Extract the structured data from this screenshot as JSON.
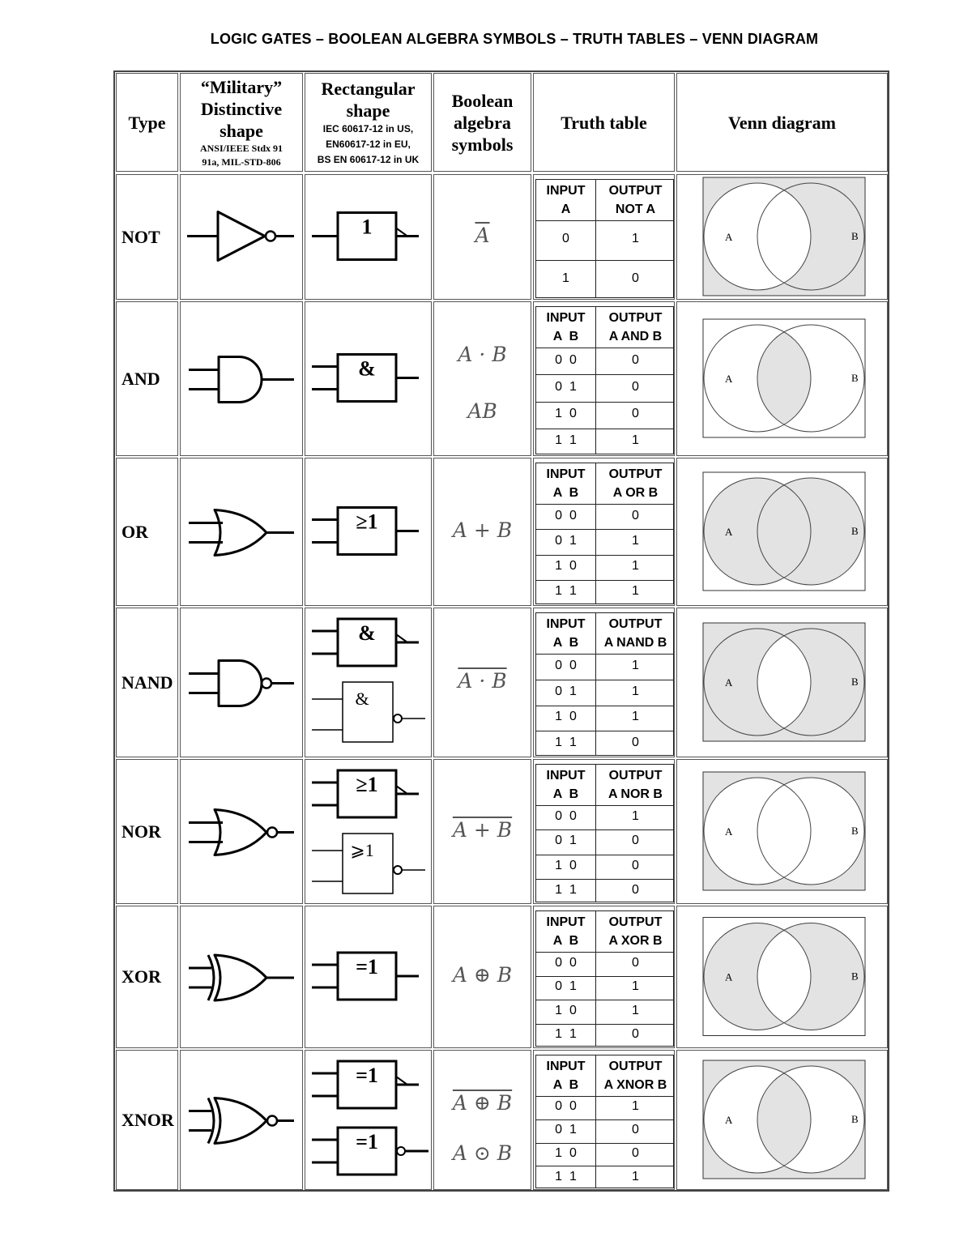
{
  "title": "LOGIC GATES – BOOLEAN ALGEBRA SYMBOLS – TRUTH TABLES – VENN DIAGRAM",
  "headers": {
    "type": "Type",
    "military_1": "“Military”",
    "military_2": "Distinctive",
    "military_3": "shape",
    "military_4": "ANSI/IEEE Stdx 91",
    "military_5": "91a, MIL-STD-806",
    "rect_1": "Rectangular",
    "rect_2": "shape",
    "rect_3": "IEC 60617-12 in US,",
    "rect_4": "EN60617-12 in EU,",
    "rect_5": "BS EN 60617-12 in UK",
    "bool_1": "Boolean",
    "bool_2": "algebra",
    "bool_3": "symbols",
    "truth": "Truth table",
    "venn": "Venn diagram"
  },
  "gates": [
    {
      "type": "NOT",
      "rect_label": "1",
      "rect_label_2": "",
      "symbol": "A",
      "symbol_overline": true,
      "symbol_2": "",
      "tt_input_1": "INPUT",
      "tt_input_2": "A",
      "tt_output_1": "OUTPUT",
      "tt_output_2": "NOT A",
      "rows": [
        [
          "0",
          "1"
        ],
        [
          "1",
          "0"
        ]
      ],
      "venn_labels": [
        "A",
        "B"
      ],
      "venn_shading": "outside-A"
    },
    {
      "type": "AND",
      "rect_label": "&",
      "rect_label_2": "",
      "symbol": "A · B",
      "symbol_overline": false,
      "symbol_2": "AB",
      "tt_input_1": "INPUT",
      "tt_input_2": "A  B",
      "tt_output_1": "OUTPUT",
      "tt_output_2": "A AND B",
      "rows": [
        [
          "0  0",
          "0"
        ],
        [
          "0  1",
          "0"
        ],
        [
          "1  0",
          "0"
        ],
        [
          "1  1",
          "1"
        ]
      ],
      "venn_labels": [
        "A",
        "B"
      ],
      "venn_shading": "intersection"
    },
    {
      "type": "OR",
      "rect_label": "≥1",
      "rect_label_2": "",
      "symbol": "A + B",
      "symbol_overline": false,
      "symbol_2": "",
      "tt_input_1": "INPUT",
      "tt_input_2": "A  B",
      "tt_output_1": "OUTPUT",
      "tt_output_2": "A OR B",
      "rows": [
        [
          "0  0",
          "0"
        ],
        [
          "0  1",
          "1"
        ],
        [
          "1  0",
          "1"
        ],
        [
          "1  1",
          "1"
        ]
      ],
      "venn_labels": [
        "A",
        "B"
      ],
      "venn_shading": "union"
    },
    {
      "type": "NAND",
      "rect_label": "&",
      "rect_label_2": "&",
      "symbol": "A · B",
      "symbol_overline": true,
      "symbol_2": "",
      "tt_input_1": "INPUT",
      "tt_input_2": "A  B",
      "tt_output_1": "OUTPUT",
      "tt_output_2": "A NAND B",
      "rows": [
        [
          "0  0",
          "1"
        ],
        [
          "0  1",
          "1"
        ],
        [
          "1  0",
          "1"
        ],
        [
          "1  1",
          "0"
        ]
      ],
      "venn_labels": [
        "A",
        "B"
      ],
      "venn_shading": "not-intersection"
    },
    {
      "type": "NOR",
      "rect_label": "≥1",
      "rect_label_2": "⩾1",
      "symbol": "A + B",
      "symbol_overline": true,
      "symbol_2": "",
      "tt_input_1": "INPUT",
      "tt_input_2": "A  B",
      "tt_output_1": "OUTPUT",
      "tt_output_2": "A NOR B",
      "rows": [
        [
          "0  0",
          "1"
        ],
        [
          "0  1",
          "0"
        ],
        [
          "1  0",
          "0"
        ],
        [
          "1  1",
          "0"
        ]
      ],
      "venn_labels": [
        "A",
        "B"
      ],
      "venn_shading": "outside"
    },
    {
      "type": "XOR",
      "rect_label": "=1",
      "rect_label_2": "",
      "symbol": "A ⊕ B",
      "symbol_overline": false,
      "symbol_2": "",
      "tt_input_1": "INPUT",
      "tt_input_2": "A  B",
      "tt_output_1": "OUTPUT",
      "tt_output_2": "A XOR B",
      "rows": [
        [
          "0  0",
          "0"
        ],
        [
          "0  1",
          "1"
        ],
        [
          "1  0",
          "1"
        ],
        [
          "1  1",
          "0"
        ]
      ],
      "venn_labels": [
        "A",
        "B"
      ],
      "venn_shading": "xor"
    },
    {
      "type": "XNOR",
      "rect_label": "=1",
      "rect_label_2": "=1",
      "symbol": "A ⊕ B",
      "symbol_overline": true,
      "symbol_2": "A ⊙ B",
      "tt_input_1": "INPUT",
      "tt_input_2": "A  B",
      "tt_output_1": "OUTPUT",
      "tt_output_2": "A XNOR B",
      "rows": [
        [
          "0  0",
          "1"
        ],
        [
          "0  1",
          "0"
        ],
        [
          "1  0",
          "0"
        ],
        [
          "1  1",
          "1"
        ]
      ],
      "venn_labels": [
        "A",
        "B"
      ],
      "venn_shading": "xnor"
    }
  ],
  "colors": {
    "venn_shade": "#e3e3e3",
    "line": "#000000"
  }
}
